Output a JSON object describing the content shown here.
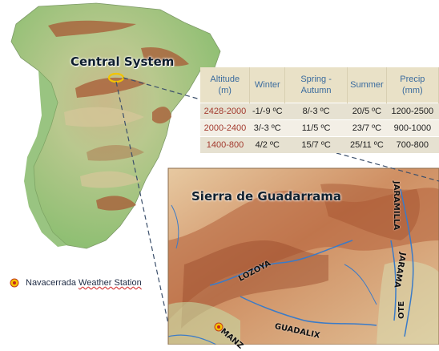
{
  "map": {
    "region_label": "Central System",
    "inset_label": "Sierra de Guadarrama",
    "rivers": [
      "LOZOYA",
      "JARAMILLA",
      "JARAMA",
      "GUADALIX",
      "MANZ",
      "OTE"
    ],
    "colors": {
      "sea": "#ffffff",
      "lowland": "#a8c98a",
      "midland": "#d9c9a0",
      "highland": "#b8643d",
      "river": "#3a7bc8"
    }
  },
  "table": {
    "headers": [
      "Altitude (m)",
      "Winter",
      "Spring - Autumn",
      "Summer",
      "Precip (mm)"
    ],
    "rows": [
      [
        "2428-2000",
        "-1/-9 ºC",
        "8/-3 ºC",
        "20/5 ºC",
        "1200-2500"
      ],
      [
        "2000-2400",
        "3/-3 ºC",
        "11/5 ºC",
        "23/7 ºC",
        "900-1000"
      ],
      [
        "1400-800",
        "4/2 ºC",
        "15/7 ºC",
        "25/11 ºC",
        "700-800"
      ]
    ]
  },
  "legend": {
    "station_word": "Navacerrada",
    "station_rest": "Weather Station"
  }
}
